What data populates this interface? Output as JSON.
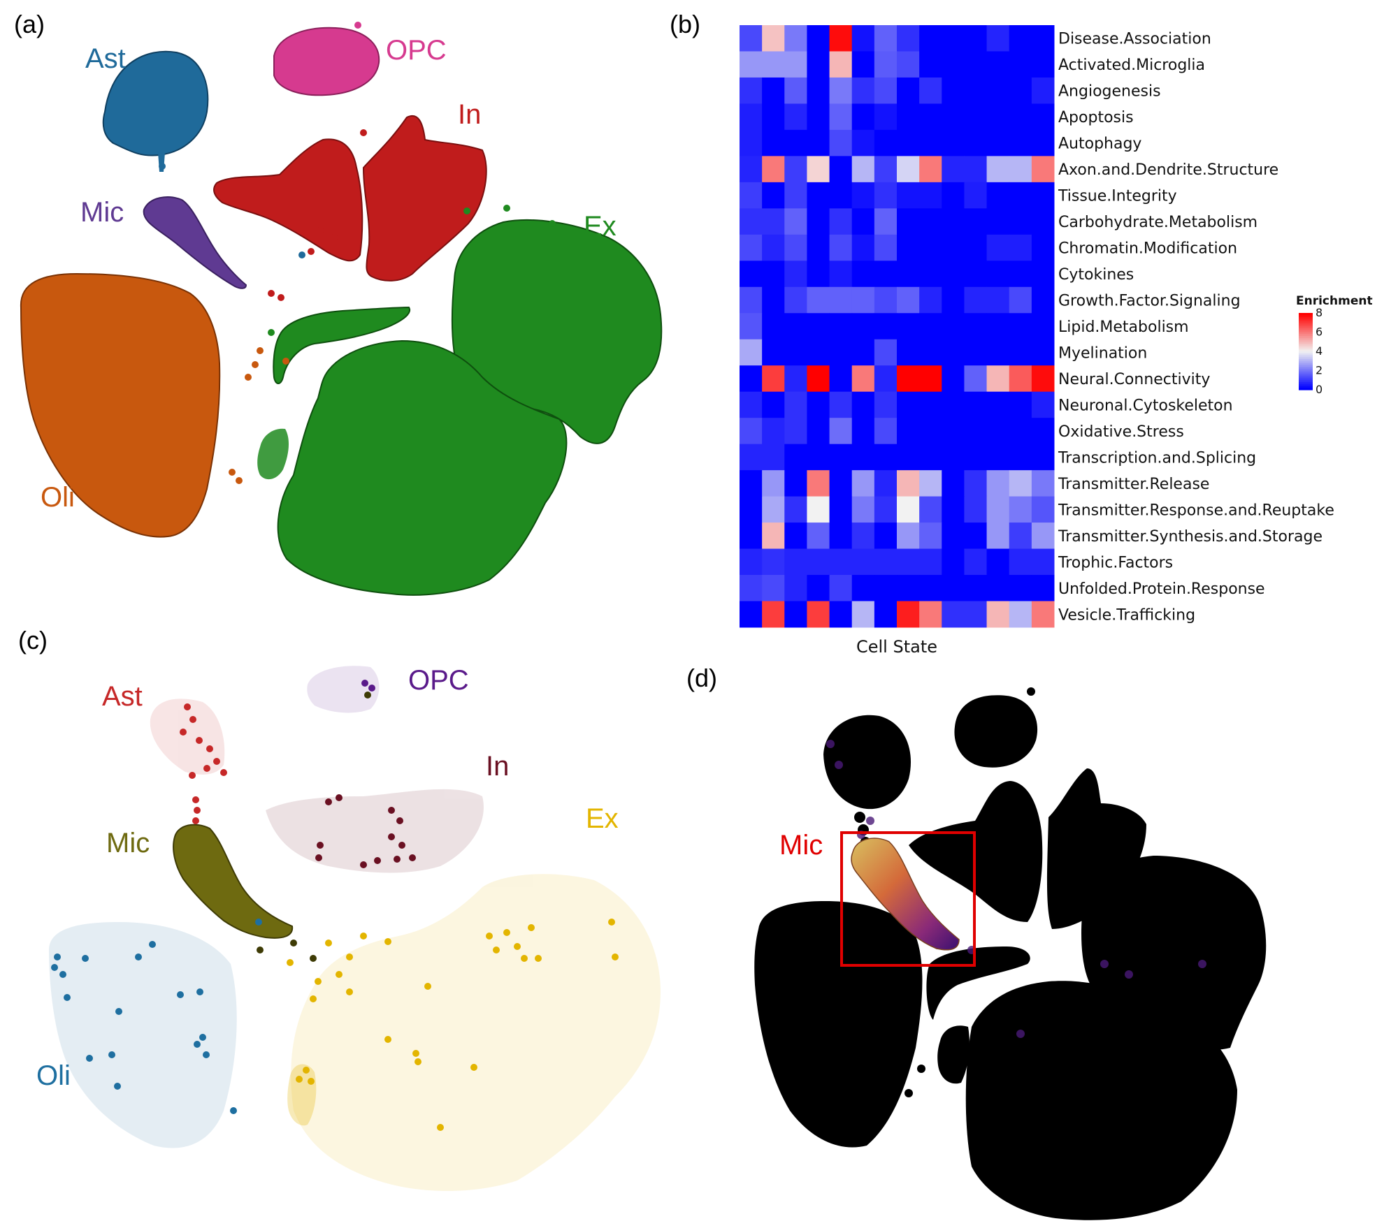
{
  "panels": {
    "a": {
      "tag": "(a)",
      "clusters": [
        {
          "key": "ast",
          "label": "Ast",
          "color": "#1f6a9a"
        },
        {
          "key": "opc",
          "label": "OPC",
          "color": "#d63a8f"
        },
        {
          "key": "in",
          "label": "In",
          "color": "#c01c1c"
        },
        {
          "key": "mic",
          "label": "Mic",
          "color": "#5f3a92"
        },
        {
          "key": "ex",
          "label": "Ex",
          "color": "#1f8a1f"
        },
        {
          "key": "oli",
          "label": "Oli",
          "color": "#c8580e"
        }
      ]
    },
    "b": {
      "tag": "(b)",
      "chart_data": {
        "type": "heatmap",
        "xlabel": "Cell State",
        "legend_title": "Enrichment",
        "legend_ticks": [
          "8",
          "6",
          "4",
          "2",
          "0"
        ],
        "value_range": [
          0,
          8
        ],
        "legend_placement": "right",
        "colors": {
          "low": "#0000ff",
          "mid": "#f2f2f2",
          "high": "#ff0000"
        },
        "rows": [
          "Disease.Association",
          "Activated.Microglia",
          "Angiogenesis",
          "Apoptosis",
          "Autophagy",
          "Axon.and.Dendrite.Structure",
          "Tissue.Integrity",
          "Carbohydrate.Metabolism",
          "Chromatin.Modification",
          "Cytokines",
          "Growth.Factor.Signaling",
          "Lipid.Metabolism",
          "Myelination",
          "Neural.Connectivity",
          "Neuronal.Cytoskeleton",
          "Oxidative.Stress",
          "Transcription.and.Splicing",
          "Transmitter.Release",
          "Transmitter.Response.and.Reuptake",
          "Transmitter.Synthesis.and.Storage",
          "Trophic.Factors",
          "Unfolded.Protein.Response",
          "Vesicle.Trafficking"
        ],
        "values": [
          [
            1.2,
            4.8,
            2.0,
            0.0,
            7.8,
            0.3,
            1.6,
            0.8,
            0.0,
            0.0,
            0.0,
            0.6,
            0.0,
            0.0
          ],
          [
            2.5,
            2.5,
            2.5,
            0.0,
            5.0,
            0.0,
            1.5,
            1.2,
            0.0,
            0.0,
            0.0,
            0.0,
            0.0,
            0.0
          ],
          [
            0.8,
            0.0,
            1.5,
            0.0,
            2.0,
            0.8,
            1.2,
            0.0,
            0.8,
            0.0,
            0.0,
            0.0,
            0.0,
            0.5
          ],
          [
            0.5,
            0.0,
            0.6,
            0.0,
            1.6,
            0.0,
            0.3,
            0.0,
            0.0,
            0.0,
            0.0,
            0.0,
            0.0,
            0.0
          ],
          [
            0.5,
            0.0,
            0.0,
            0.0,
            1.2,
            0.3,
            0.0,
            0.0,
            0.0,
            0.0,
            0.0,
            0.0,
            0.0,
            0.0
          ],
          [
            0.6,
            6.0,
            1.0,
            4.5,
            0.0,
            3.0,
            1.0,
            3.5,
            6.0,
            0.6,
            0.6,
            3.0,
            3.0,
            6.0
          ],
          [
            1.0,
            0.0,
            1.0,
            0.0,
            0.0,
            0.3,
            0.8,
            0.3,
            0.3,
            0.0,
            0.5,
            0.0,
            0.0,
            0.0
          ],
          [
            0.8,
            0.8,
            1.6,
            0.0,
            0.8,
            0.0,
            1.6,
            0.0,
            0.0,
            0.0,
            0.0,
            0.0,
            0.0,
            0.0
          ],
          [
            1.2,
            0.6,
            1.2,
            0.0,
            1.2,
            0.3,
            1.2,
            0.0,
            0.0,
            0.0,
            0.0,
            0.5,
            0.5,
            0.0
          ],
          [
            0.0,
            0.0,
            0.6,
            0.0,
            0.4,
            0.0,
            0.0,
            0.0,
            0.0,
            0.0,
            0.0,
            0.0,
            0.0,
            0.0
          ],
          [
            1.2,
            0.0,
            1.0,
            1.6,
            1.6,
            1.6,
            1.2,
            1.6,
            0.6,
            0.0,
            0.6,
            0.6,
            1.2,
            0.0
          ],
          [
            1.4,
            0.0,
            0.0,
            0.0,
            0.0,
            0.0,
            0.0,
            0.0,
            0.0,
            0.0,
            0.0,
            0.0,
            0.0,
            0.0
          ],
          [
            2.8,
            0.0,
            0.0,
            0.0,
            0.0,
            0.0,
            1.2,
            0.0,
            0.0,
            0.0,
            0.0,
            0.0,
            0.0,
            0.0
          ],
          [
            0.0,
            7.0,
            0.6,
            8.0,
            0.0,
            6.0,
            0.6,
            8.0,
            8.0,
            0.0,
            1.6,
            5.0,
            6.5,
            7.8
          ],
          [
            0.6,
            0.0,
            0.8,
            0.0,
            0.8,
            0.0,
            0.8,
            0.0,
            0.0,
            0.0,
            0.0,
            0.0,
            0.0,
            0.5
          ],
          [
            1.2,
            0.6,
            0.8,
            0.0,
            1.8,
            0.0,
            1.2,
            0.0,
            0.0,
            0.0,
            0.0,
            0.0,
            0.0,
            0.0
          ],
          [
            0.6,
            0.6,
            0.0,
            0.0,
            0.0,
            0.0,
            0.0,
            0.0,
            0.0,
            0.0,
            0.0,
            0.0,
            0.0,
            0.0
          ],
          [
            0.0,
            2.5,
            0.0,
            6.0,
            0.0,
            2.5,
            0.6,
            5.0,
            3.0,
            0.0,
            0.8,
            2.5,
            3.0,
            2.0
          ],
          [
            0.0,
            2.8,
            0.8,
            4.0,
            0.0,
            2.0,
            0.8,
            4.0,
            1.2,
            0.0,
            0.8,
            2.5,
            2.0,
            1.4
          ],
          [
            0.0,
            5.0,
            0.0,
            1.6,
            0.0,
            0.8,
            0.0,
            2.5,
            1.6,
            0.0,
            0.0,
            2.5,
            1.0,
            2.5
          ],
          [
            0.6,
            0.8,
            0.6,
            0.6,
            0.6,
            0.6,
            0.6,
            0.6,
            0.6,
            0.0,
            0.6,
            0.0,
            0.6,
            0.6
          ],
          [
            1.0,
            1.2,
            0.6,
            0.0,
            1.0,
            0.0,
            0.0,
            0.0,
            0.0,
            0.0,
            0.0,
            0.0,
            0.0,
            0.0
          ],
          [
            0.0,
            7.0,
            0.0,
            7.0,
            0.0,
            3.0,
            0.0,
            7.5,
            6.0,
            0.8,
            0.8,
            5.0,
            3.0,
            6.0
          ]
        ]
      }
    },
    "c": {
      "tag": "(c)",
      "clusters": [
        {
          "key": "ast",
          "label": "Ast",
          "color": "#c62828"
        },
        {
          "key": "opc",
          "label": "OPC",
          "color": "#5a1a8a"
        },
        {
          "key": "in",
          "label": "In",
          "color": "#6a1022"
        },
        {
          "key": "mic",
          "label": "Mic",
          "color": "#6e6a10"
        },
        {
          "key": "ex",
          "label": "Ex",
          "color": "#e3b500"
        },
        {
          "key": "oli",
          "label": "Oli",
          "color": "#1e6fa0"
        }
      ]
    },
    "d": {
      "tag": "(d)",
      "highlight_label": "Mic",
      "highlight_color": "#e00000"
    }
  }
}
